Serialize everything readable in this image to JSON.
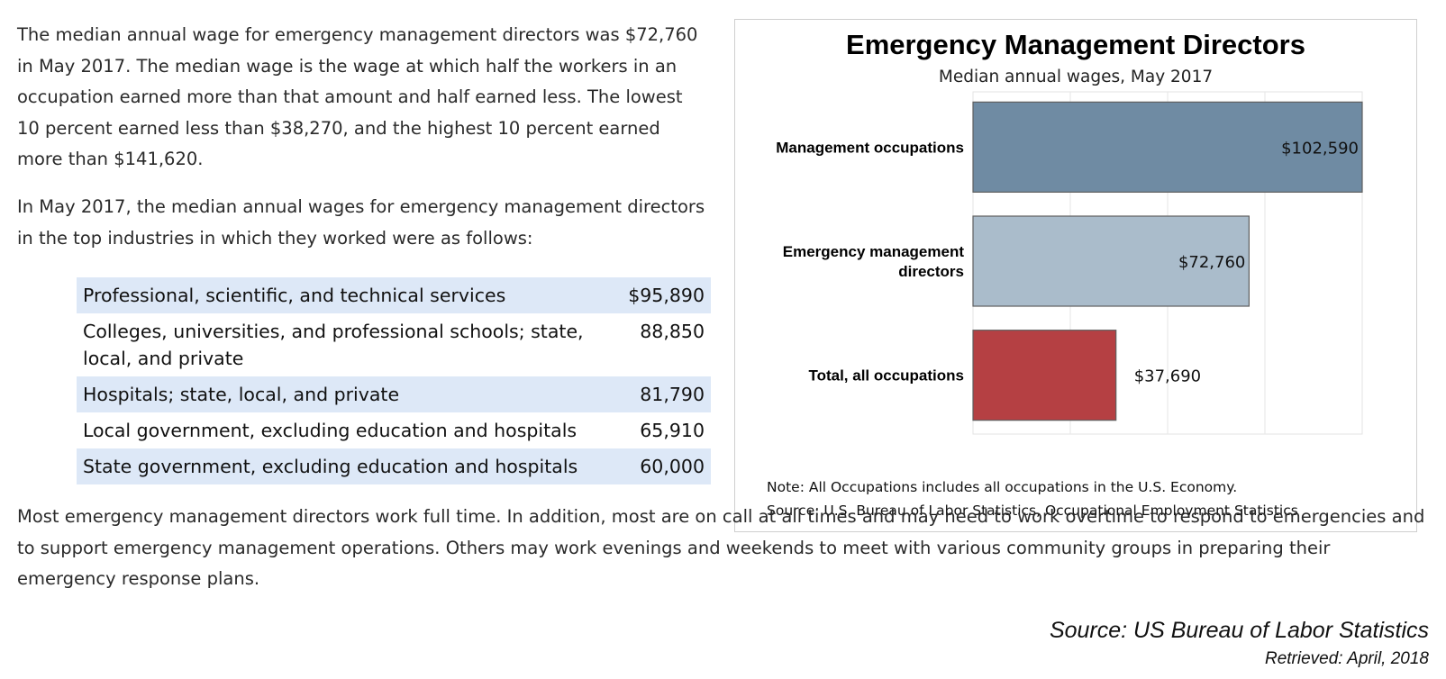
{
  "article": {
    "paragraph1": "The median annual wage for emergency management directors was $72,760 in May 2017. The median wage is the wage at which half the workers in an occupation earned more than that amount and half earned less. The lowest 10 percent earned less than $38,270, and the highest 10 percent earned more than $141,620.",
    "paragraph2": "In May 2017, the median annual wages for emergency management directors in the top industries in which they worked were as follows:",
    "paragraph3": "Most emergency management directors work full time. In addition, most are on call at all times and may need to work overtime to respond to emergencies and to support emergency management operations. Others may work evenings and weekends to meet with various community groups in preparing their emergency response plans."
  },
  "industry_table": {
    "rows": [
      {
        "industry": "Professional, scientific, and technical services",
        "wage": "$95,890"
      },
      {
        "industry": "Colleges, universities, and professional schools; state, local, and private",
        "wage": "88,850"
      },
      {
        "industry": "Hospitals; state, local, and private",
        "wage": "81,790"
      },
      {
        "industry": "Local government, excluding education and hospitals",
        "wage": "65,910"
      },
      {
        "industry": "State government, excluding education and hospitals",
        "wage": "60,000"
      }
    ]
  },
  "chart_data": {
    "type": "bar",
    "orientation": "horizontal",
    "title": "Emergency Management Directors",
    "subtitle": "Median annual wages, May 2017",
    "xlabel": "",
    "ylabel": "",
    "xlim": [
      0,
      102590
    ],
    "grid": true,
    "categories": [
      "Management occupations",
      "Emergency management directors",
      "Total, all occupations"
    ],
    "category_lines": [
      [
        "Management occupations"
      ],
      [
        "Emergency management",
        "directors"
      ],
      [
        "Total, all occupations"
      ]
    ],
    "values": [
      102590,
      72760,
      37690
    ],
    "value_labels": [
      "$102,590",
      "$72,760",
      "$37,690"
    ],
    "colors": [
      "#6f8ba3",
      "#aabccb",
      "#b54043"
    ],
    "note": "Note: All Occupations includes all occupations in the U.S. Economy.",
    "source": "Source: U.S. Bureau of Labor Statistics, Occupational Employment Statistics"
  },
  "attribution": {
    "source": "Source: US Bureau of Labor Statistics",
    "retrieved": "Retrieved: April, 2018"
  }
}
